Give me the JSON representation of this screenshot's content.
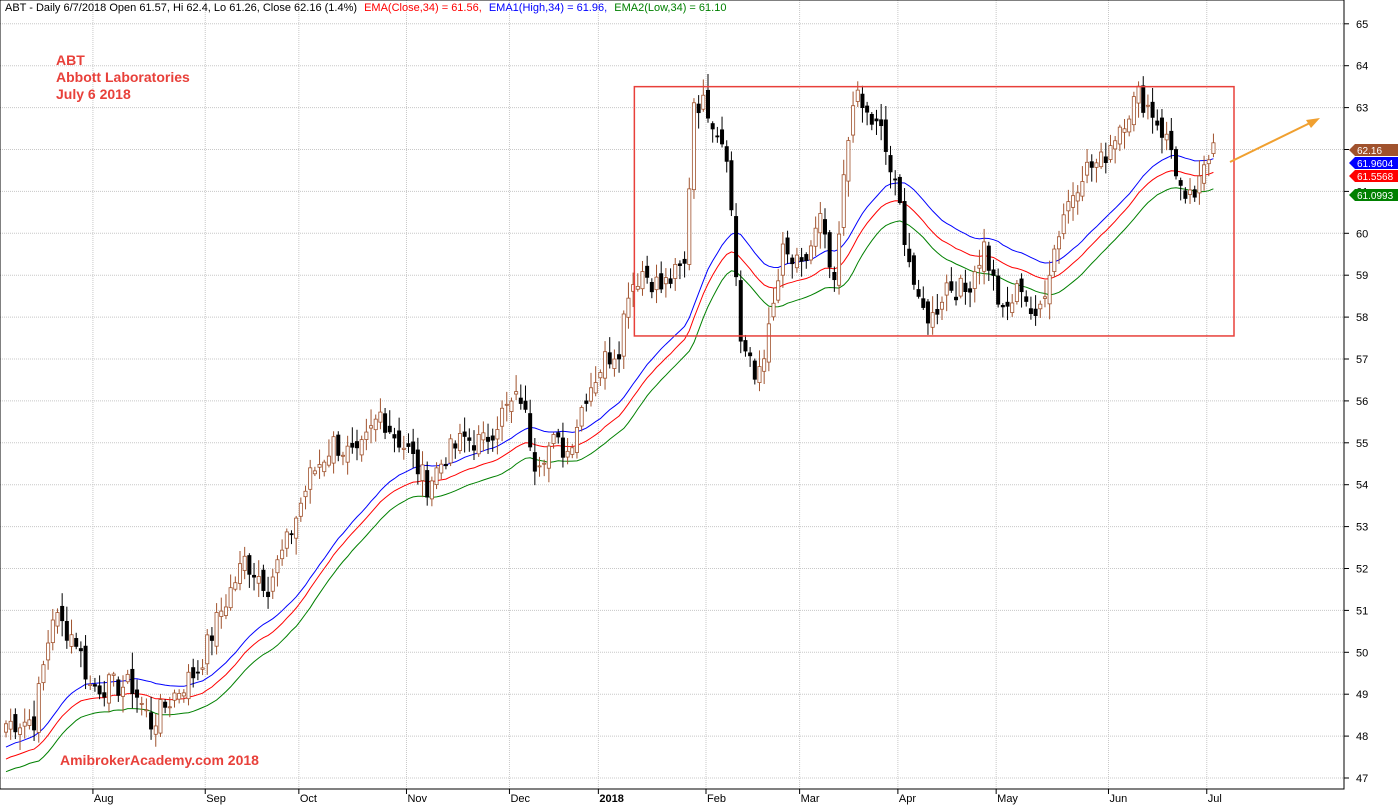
{
  "header": {
    "prefix": "ABT - Daily 6/7/2018 Open 61.57, Hi 62.4, Lo 61.26, Close 62.16 (1.4%)",
    "ema": "EMA(Close,34) = 61.56,",
    "ema1": "EMA1(High,34) = 61.96,",
    "ema2": "EMA2(Low,34) = 61.10"
  },
  "annotation": {
    "symbol": "ABT",
    "company": "Abbott Laboratories",
    "date": "July 6 2018"
  },
  "footer": "AmibrokerAcademy.com 2018",
  "colors": {
    "up": "#a0522d",
    "down": "#000000",
    "ema_close": "#ff0000",
    "ema_high": "#0000ff",
    "ema_low": "#008000",
    "box": "#e8403a",
    "arrow": "#f0a030",
    "grid": "#c8c8c8"
  },
  "chart_data": {
    "type": "candlestick",
    "y_axis": {
      "min": 46.5,
      "max": 65.5,
      "ticks": [
        47,
        48,
        49,
        50,
        51,
        52,
        53,
        54,
        55,
        56,
        57,
        58,
        59,
        60,
        61,
        62,
        63,
        64,
        65
      ],
      "side": "right"
    },
    "x_axis_labels": [
      "Aug",
      "Sep",
      "Oct",
      "Nov",
      "Dec",
      "2018",
      "Feb",
      "Mar",
      "Apr",
      "May",
      "Jun",
      "Jul"
    ],
    "price_tags": [
      {
        "label": "62.16",
        "value": 62.16,
        "color": "#a0522d"
      },
      {
        "label": "61.9604",
        "value": 61.9604,
        "color": "#0000ff"
      },
      {
        "label": "61.5568",
        "value": 61.5568,
        "color": "#ff0000"
      },
      {
        "label": "61.0993",
        "value": 61.0993,
        "color": "#008000"
      }
    ],
    "range_box": {
      "top": 63.5,
      "bottom": 57.55,
      "start_month_index": 5,
      "end_month_index": 11
    },
    "anchors": [
      [
        0,
        48.3
      ],
      [
        6,
        48.4
      ],
      [
        10,
        50.9
      ],
      [
        15,
        50.3
      ],
      [
        18,
        49.2
      ],
      [
        27,
        49.2
      ],
      [
        31,
        48.3
      ],
      [
        36,
        49.0
      ],
      [
        41,
        49.6
      ],
      [
        46,
        51.0
      ],
      [
        51,
        52.2
      ],
      [
        56,
        51.6
      ],
      [
        60,
        52.6
      ],
      [
        65,
        54.2
      ],
      [
        70,
        55.0
      ],
      [
        75,
        54.6
      ],
      [
        80,
        55.7
      ],
      [
        83,
        55.2
      ],
      [
        86,
        54.8
      ],
      [
        90,
        54.0
      ],
      [
        94,
        54.7
      ],
      [
        98,
        55.1
      ],
      [
        102,
        55.0
      ],
      [
        106,
        55.7
      ],
      [
        110,
        56.1
      ],
      [
        113,
        54.6
      ],
      [
        117,
        55.0
      ],
      [
        120,
        54.8
      ],
      [
        124,
        56.2
      ],
      [
        128,
        57.0
      ],
      [
        131,
        57.3
      ],
      [
        133,
        58.7
      ],
      [
        136,
        59.1
      ],
      [
        140,
        58.7
      ],
      [
        145,
        59.2
      ],
      [
        147,
        63.2
      ],
      [
        150,
        63.0
      ],
      [
        154,
        62.0
      ],
      [
        157,
        57.5
      ],
      [
        160,
        56.5
      ],
      [
        163,
        57.6
      ],
      [
        166,
        59.5
      ],
      [
        170,
        59.1
      ],
      [
        174,
        60.3
      ],
      [
        177,
        58.6
      ],
      [
        179,
        61.2
      ],
      [
        181,
        63.3
      ],
      [
        184,
        62.8
      ],
      [
        187,
        62.4
      ],
      [
        191,
        60.6
      ],
      [
        195,
        58.2
      ],
      [
        198,
        58.0
      ],
      [
        201,
        58.8
      ],
      [
        205,
        58.6
      ],
      [
        209,
        59.7
      ],
      [
        213,
        58.0
      ],
      [
        217,
        58.8
      ],
      [
        220,
        57.8
      ],
      [
        223,
        59.2
      ],
      [
        226,
        60.5
      ],
      [
        230,
        61.5
      ],
      [
        234,
        61.7
      ],
      [
        238,
        62.6
      ],
      [
        242,
        63.3
      ],
      [
        245,
        62.9
      ],
      [
        249,
        62.0
      ],
      [
        252,
        60.6
      ],
      [
        255,
        61.1
      ],
      [
        258,
        62.16
      ]
    ]
  }
}
